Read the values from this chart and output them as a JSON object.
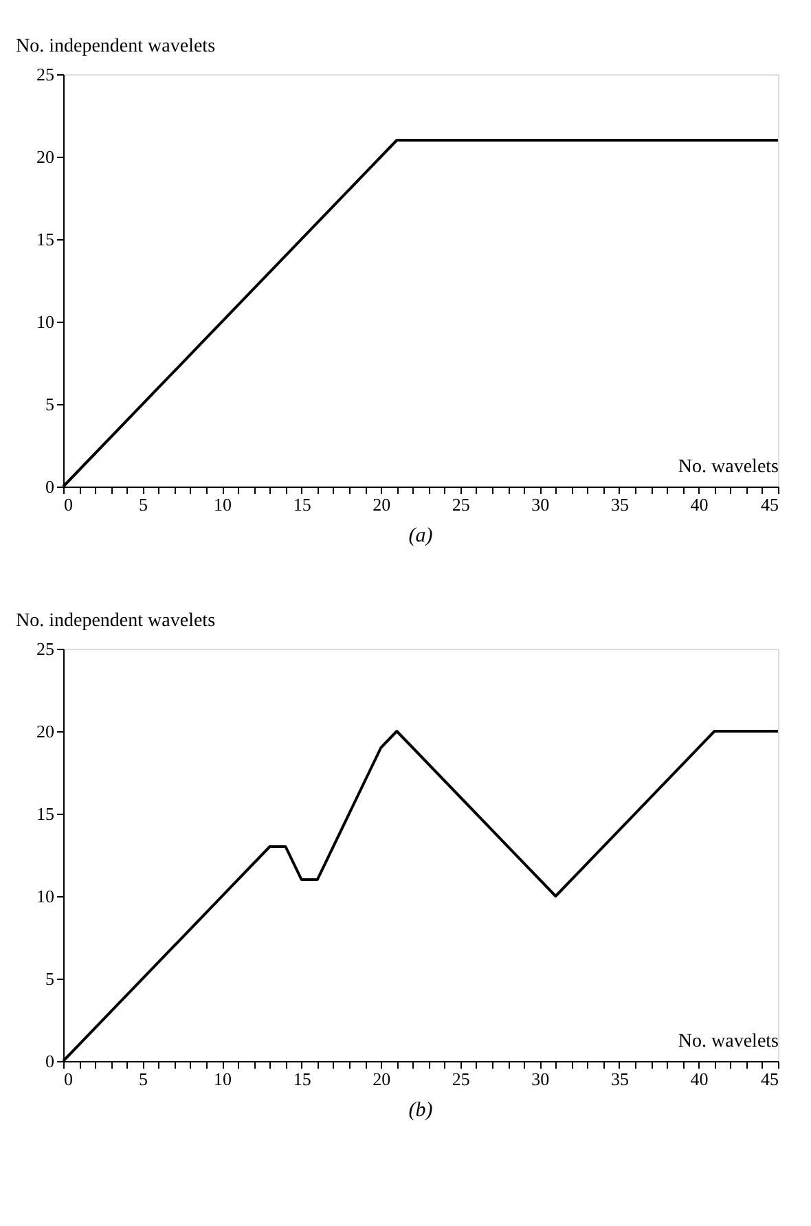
{
  "chart_data": [
    {
      "type": "line",
      "title": "(a)",
      "xlabel": "No. wavelets",
      "ylabel": "No. independent wavelets",
      "grid": false,
      "marker": "none",
      "line_style": "solid",
      "x": [
        0,
        21,
        45
      ],
      "series": [
        {
          "color": "#000000",
          "values": [
            0,
            21,
            21
          ]
        }
      ],
      "xlim": [
        0,
        45
      ],
      "ylim": [
        0,
        25
      ],
      "yticks": [
        0,
        5,
        10,
        15,
        20,
        25
      ],
      "xticks": [
        0,
        {
          "value": 1,
          "label": null
        },
        {
          "value": 2,
          "label": null
        },
        {
          "value": 3,
          "label": null
        },
        {
          "value": 4,
          "label": null
        },
        5,
        {
          "value": 6,
          "label": null
        },
        {
          "value": 7,
          "label": null
        },
        {
          "value": 8,
          "label": null
        },
        {
          "value": 9,
          "label": null
        },
        10,
        {
          "value": 11,
          "label": null
        },
        {
          "value": 12,
          "label": null
        },
        {
          "value": 13,
          "label": null
        },
        {
          "value": 14,
          "label": null
        },
        15,
        {
          "value": 16,
          "label": null
        },
        {
          "value": 17,
          "label": null
        },
        {
          "value": 18,
          "label": null
        },
        {
          "value": 19,
          "label": null
        },
        20,
        {
          "value": 21,
          "label": null
        },
        {
          "value": 22,
          "label": null
        },
        {
          "value": 23,
          "label": null
        },
        {
          "value": 24,
          "label": null
        },
        25,
        {
          "value": 26,
          "label": null
        },
        {
          "value": 27,
          "label": null
        },
        {
          "value": 28,
          "label": null
        },
        {
          "value": 29,
          "label": null
        },
        30,
        {
          "value": 31,
          "label": null
        },
        {
          "value": 32,
          "label": null
        },
        {
          "value": 33,
          "label": null
        },
        {
          "value": 34,
          "label": null
        },
        35,
        {
          "value": 36,
          "label": null
        },
        {
          "value": 37,
          "label": null
        },
        {
          "value": 38,
          "label": null
        },
        {
          "value": 39,
          "label": null
        },
        40,
        {
          "value": 41,
          "label": null
        },
        {
          "value": 42,
          "label": null
        },
        {
          "value": 43,
          "label": null
        },
        {
          "value": 44,
          "label": null
        },
        45
      ]
    },
    {
      "type": "line",
      "title": "(b)",
      "xlabel": "No. wavelets",
      "ylabel": "No. independent wavelets",
      "grid": false,
      "marker": "none",
      "line_style": "solid",
      "x": [
        0,
        13,
        14,
        15,
        16,
        20,
        21,
        31,
        41,
        45
      ],
      "series": [
        {
          "color": "#000000",
          "values": [
            0,
            13,
            13,
            11,
            11,
            19,
            20,
            10,
            20,
            20
          ]
        }
      ],
      "xlim": [
        0,
        45
      ],
      "ylim": [
        0,
        25
      ],
      "yticks": [
        0,
        5,
        10,
        15,
        20,
        25
      ],
      "xticks": [
        0,
        {
          "value": 1,
          "label": null
        },
        {
          "value": 2,
          "label": null
        },
        {
          "value": 3,
          "label": null
        },
        {
          "value": 4,
          "label": null
        },
        5,
        {
          "value": 6,
          "label": null
        },
        {
          "value": 7,
          "label": null
        },
        {
          "value": 8,
          "label": null
        },
        {
          "value": 9,
          "label": null
        },
        10,
        {
          "value": 11,
          "label": null
        },
        {
          "value": 12,
          "label": null
        },
        {
          "value": 13,
          "label": null
        },
        {
          "value": 14,
          "label": null
        },
        15,
        {
          "value": 16,
          "label": null
        },
        {
          "value": 17,
          "label": null
        },
        {
          "value": 18,
          "label": null
        },
        {
          "value": 19,
          "label": null
        },
        20,
        {
          "value": 21,
          "label": null
        },
        {
          "value": 22,
          "label": null
        },
        {
          "value": 23,
          "label": null
        },
        {
          "value": 24,
          "label": null
        },
        25,
        {
          "value": 26,
          "label": null
        },
        {
          "value": 27,
          "label": null
        },
        {
          "value": 28,
          "label": null
        },
        {
          "value": 29,
          "label": null
        },
        30,
        {
          "value": 31,
          "label": null
        },
        {
          "value": 32,
          "label": null
        },
        {
          "value": 33,
          "label": null
        },
        {
          "value": 34,
          "label": null
        },
        35,
        {
          "value": 36,
          "label": null
        },
        {
          "value": 37,
          "label": null
        },
        {
          "value": 38,
          "label": null
        },
        {
          "value": 39,
          "label": null
        },
        40,
        {
          "value": 41,
          "label": null
        },
        {
          "value": 42,
          "label": null
        },
        {
          "value": 43,
          "label": null
        },
        {
          "value": 44,
          "label": null
        },
        45
      ]
    }
  ]
}
